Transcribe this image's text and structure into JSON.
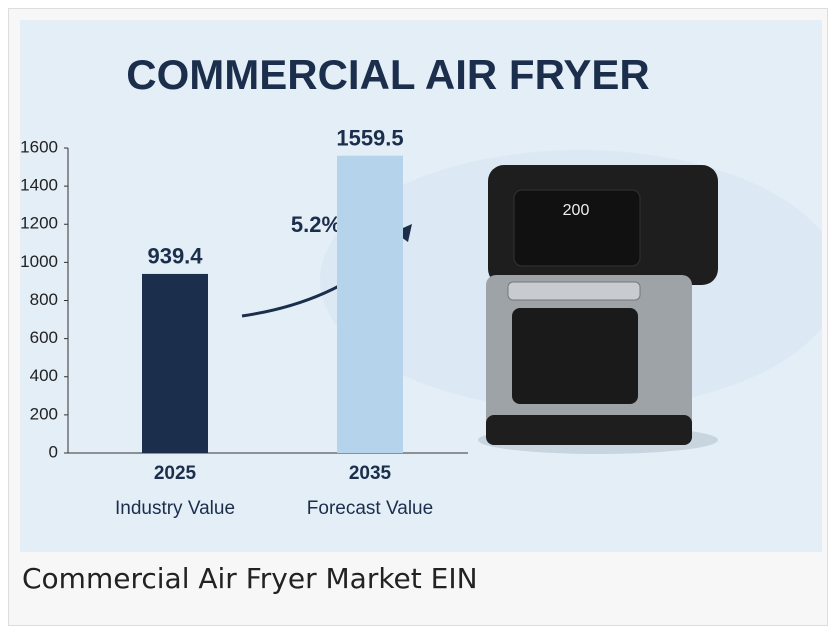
{
  "chart_data": {
    "type": "bar",
    "title": "COMMERCIAL AIR FRYER",
    "categories": [
      "2025",
      "2035"
    ],
    "category_descriptions": [
      "Industry Value",
      "Forecast Value"
    ],
    "values": [
      939.4,
      1559.5
    ],
    "colors": [
      "#1b2e4b",
      "#b5d3ea"
    ],
    "ylim": [
      0,
      1600
    ],
    "yticks": [
      0,
      200,
      400,
      600,
      800,
      1000,
      1200,
      1400,
      1600
    ],
    "grid": false,
    "annotation": "5.2%"
  },
  "illustration": {
    "display": "200"
  },
  "caption": "Commercial Air Fryer Market EIN"
}
